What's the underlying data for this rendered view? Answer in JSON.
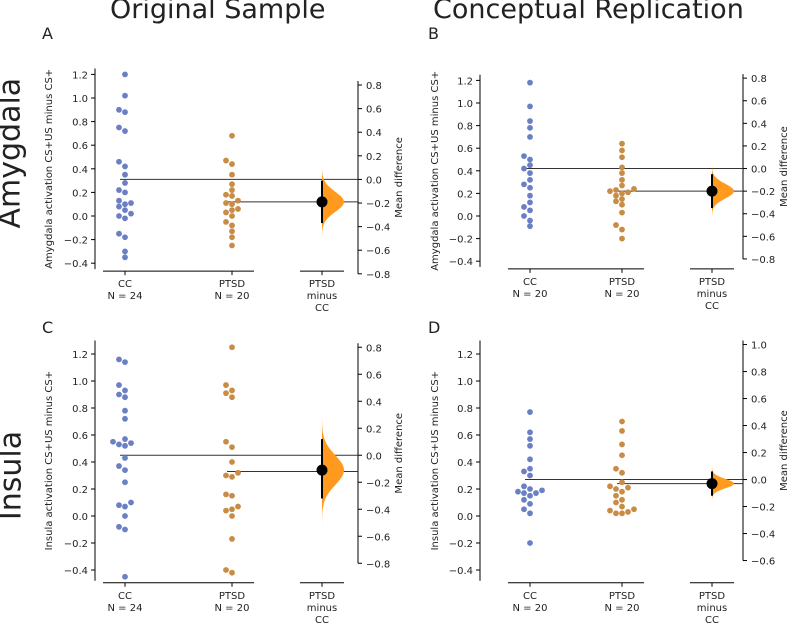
{
  "column_titles": [
    "Original Sample",
    "Conceptual Replication"
  ],
  "row_titles": [
    "Amygdala",
    "Insula"
  ],
  "colors": {
    "cc": "#6b7fc4",
    "ptsd": "#c98c45",
    "effect": "#ff9a1f",
    "line": "#333333"
  },
  "chart_data": [
    {
      "letter": "A",
      "type": "scatter",
      "subtype": "gardner-altman estimation plot",
      "ylabel": "Amygdala activation CS+US minus CS+",
      "right_ylabel": "Mean difference",
      "ylim": [
        -0.45,
        1.25
      ],
      "yticks": [
        -0.4,
        -0.2,
        0.0,
        0.2,
        0.4,
        0.6,
        0.8,
        1.0,
        1.2
      ],
      "right_yticks": [
        -0.8,
        -0.6,
        -0.4,
        -0.2,
        0.0,
        0.2,
        0.4,
        0.6,
        0.8
      ],
      "groups": [
        {
          "name": "CC",
          "n_label": "N = 24",
          "values": [
            1.2,
            1.02,
            0.9,
            0.88,
            0.75,
            0.72,
            0.46,
            0.42,
            0.35,
            0.28,
            0.22,
            0.2,
            0.13,
            0.11,
            0.1,
            0.08,
            0.05,
            0.02,
            0.0,
            -0.02,
            -0.15,
            -0.18,
            -0.3,
            -0.35
          ]
        },
        {
          "name": "PTSD",
          "n_label": "N = 20",
          "values": [
            0.68,
            0.47,
            0.44,
            0.35,
            0.27,
            0.22,
            0.18,
            0.17,
            0.13,
            0.11,
            0.1,
            0.06,
            0.05,
            0.03,
            0.0,
            -0.05,
            -0.08,
            -0.13,
            -0.18,
            -0.25
          ]
        }
      ],
      "effect": {
        "label": "PTSD\nminus\nCC",
        "mean_difference": -0.19,
        "ci": [
          -0.37,
          -0.01
        ],
        "dist_sd": 0.085
      },
      "group_means": {
        "CC": 0.31,
        "PTSD": 0.12
      }
    },
    {
      "letter": "B",
      "type": "scatter",
      "subtype": "gardner-altman estimation plot",
      "ylabel": "Amygdala activation CS+US minus CS+",
      "right_ylabel": "Mean difference",
      "ylim": [
        -0.45,
        1.25
      ],
      "yticks": [
        -0.4,
        -0.2,
        0.0,
        0.2,
        0.4,
        0.6,
        0.8,
        1.0,
        1.2
      ],
      "right_yticks": [
        -0.8,
        -0.6,
        -0.4,
        -0.2,
        0.0,
        0.2,
        0.4,
        0.6,
        0.8
      ],
      "groups": [
        {
          "name": "CC",
          "n_label": "N = 20",
          "values": [
            1.18,
            0.97,
            0.84,
            0.78,
            0.7,
            0.53,
            0.5,
            0.45,
            0.42,
            0.38,
            0.32,
            0.28,
            0.25,
            0.18,
            0.12,
            0.08,
            0.05,
            0.0,
            -0.04,
            -0.09
          ]
        },
        {
          "name": "PTSD",
          "n_label": "N = 20",
          "values": [
            0.64,
            0.58,
            0.52,
            0.43,
            0.38,
            0.32,
            0.27,
            0.24,
            0.23,
            0.22,
            0.21,
            0.2,
            0.18,
            0.15,
            0.13,
            0.1,
            0.03,
            -0.08,
            -0.12,
            -0.2
          ]
        }
      ],
      "effect": {
        "label": "PTSD\nminus\nCC",
        "mean_difference": -0.2,
        "ci": [
          -0.35,
          -0.05
        ],
        "dist_sd": 0.065
      },
      "group_means": {
        "CC": 0.42,
        "PTSD": 0.22
      }
    },
    {
      "letter": "C",
      "type": "scatter",
      "subtype": "gardner-altman estimation plot",
      "ylabel": "Insula activation CS+US minus CS+",
      "right_ylabel": "Mean difference",
      "ylim": [
        -0.48,
        1.3
      ],
      "yticks": [
        -0.4,
        -0.2,
        0.0,
        0.2,
        0.4,
        0.6,
        0.8,
        1.0,
        1.2
      ],
      "right_yticks": [
        -0.8,
        -0.6,
        -0.4,
        -0.2,
        0.0,
        0.2,
        0.4,
        0.6,
        0.8
      ],
      "groups": [
        {
          "name": "CC",
          "n_label": "N = 24",
          "values": [
            1.16,
            1.14,
            0.97,
            0.93,
            0.9,
            0.88,
            0.78,
            0.72,
            0.57,
            0.55,
            0.54,
            0.53,
            0.52,
            0.43,
            0.37,
            0.34,
            0.25,
            0.1,
            0.08,
            0.07,
            0.0,
            -0.08,
            -0.1,
            -0.45
          ]
        },
        {
          "name": "PTSD",
          "n_label": "N = 20",
          "values": [
            1.25,
            0.97,
            0.93,
            0.91,
            0.88,
            0.55,
            0.51,
            0.4,
            0.32,
            0.3,
            0.29,
            0.16,
            0.15,
            0.07,
            0.05,
            0.04,
            0.0,
            -0.17,
            -0.4,
            -0.42
          ]
        }
      ],
      "effect": {
        "label": "PTSD\nminus\nCC",
        "mean_difference": -0.11,
        "ci": [
          -0.32,
          0.12
        ],
        "dist_sd": 0.11
      },
      "group_means": {
        "CC": 0.45,
        "PTSD": 0.33
      }
    },
    {
      "letter": "D",
      "type": "scatter",
      "subtype": "gardner-altman estimation plot",
      "ylabel": "Insula activation CS+US minus CS+",
      "right_ylabel": "Mean difference",
      "ylim": [
        -0.48,
        1.3
      ],
      "yticks": [
        -0.4,
        -0.2,
        0.0,
        0.2,
        0.4,
        0.6,
        0.8,
        1.0,
        1.2
      ],
      "right_yticks": [
        -0.6,
        -0.4,
        -0.2,
        0.0,
        0.2,
        0.4,
        0.6,
        0.8,
        1.0
      ],
      "groups": [
        {
          "name": "CC",
          "n_label": "N = 20",
          "values": [
            0.77,
            0.62,
            0.57,
            0.52,
            0.42,
            0.35,
            0.33,
            0.3,
            0.22,
            0.2,
            0.19,
            0.18,
            0.17,
            0.17,
            0.15,
            0.12,
            0.09,
            0.05,
            0.02,
            -0.2
          ]
        },
        {
          "name": "PTSD",
          "n_label": "N = 20",
          "values": [
            0.7,
            0.63,
            0.53,
            0.45,
            0.35,
            0.32,
            0.25,
            0.22,
            0.21,
            0.2,
            0.18,
            0.15,
            0.12,
            0.1,
            0.07,
            0.05,
            0.04,
            0.03,
            0.02,
            0.02
          ]
        }
      ],
      "effect": {
        "label": "PTSD\nminus\nCC",
        "mean_difference": -0.03,
        "ci": [
          -0.12,
          0.06
        ],
        "dist_sd": 0.035
      },
      "group_means": {
        "CC": 0.27,
        "PTSD": 0.24
      }
    }
  ]
}
